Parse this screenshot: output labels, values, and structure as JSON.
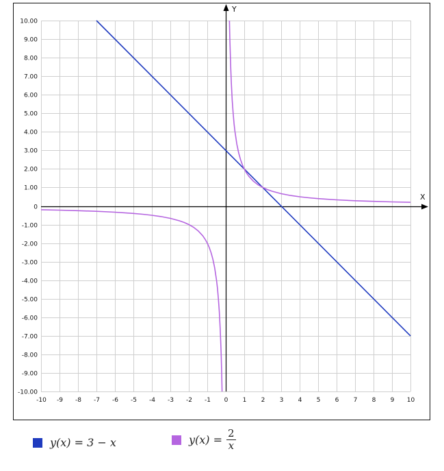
{
  "chart_data": {
    "type": "line",
    "title": "",
    "xlabel": "X",
    "ylabel": "Y",
    "xlim": [
      -10,
      10
    ],
    "ylim": [
      -10,
      10
    ],
    "grid": true,
    "x_ticks": [
      "-10",
      "-9",
      "-8",
      "-7",
      "-6",
      "-5",
      "-4",
      "-3",
      "-2",
      "-1",
      "0",
      "1",
      "2",
      "3",
      "4",
      "5",
      "6",
      "7",
      "8",
      "9",
      "10"
    ],
    "y_ticks": [
      "10.00",
      "9.00",
      "8.00",
      "7.00",
      "6.00",
      "5.00",
      "4.00",
      "3.00",
      "2.00",
      "1.00",
      "0",
      "-1.00",
      "-2.00",
      "-3.00",
      "-4.00",
      "-5.00",
      "-6.00",
      "-7.00",
      "-8.00",
      "-9.00",
      "-10.00"
    ],
    "legend_position": "bottom",
    "series": [
      {
        "name": "y(x) = 3 − x",
        "color": "#1f3bbf",
        "segments": [
          [
            [
              -7,
              10
            ],
            [
              10,
              -7
            ]
          ]
        ]
      },
      {
        "name": "y(x) = 2/x",
        "color": "#b565e0",
        "segments": [
          [
            [
              -10,
              -0.2
            ],
            [
              -9,
              -0.222
            ],
            [
              -8,
              -0.25
            ],
            [
              -7,
              -0.286
            ],
            [
              -6,
              -0.333
            ],
            [
              -5,
              -0.4
            ],
            [
              -4.5,
              -0.444
            ],
            [
              -4,
              -0.5
            ],
            [
              -3.5,
              -0.571
            ],
            [
              -3,
              -0.667
            ],
            [
              -2.5,
              -0.8
            ],
            [
              -2.25,
              -0.889
            ],
            [
              -2,
              -1
            ],
            [
              -1.75,
              -1.143
            ],
            [
              -1.5,
              -1.333
            ],
            [
              -1.25,
              -1.6
            ],
            [
              -1.1,
              -1.818
            ],
            [
              -1,
              -2
            ],
            [
              -0.9,
              -2.222
            ],
            [
              -0.8,
              -2.5
            ],
            [
              -0.7,
              -2.857
            ],
            [
              -0.6,
              -3.333
            ],
            [
              -0.5,
              -4
            ],
            [
              -0.45,
              -4.444
            ],
            [
              -0.4,
              -5
            ],
            [
              -0.35,
              -5.714
            ],
            [
              -0.3,
              -6.667
            ],
            [
              -0.27,
              -7.407
            ],
            [
              -0.25,
              -8
            ],
            [
              -0.22,
              -9.091
            ],
            [
              -0.2,
              -10
            ]
          ],
          [
            [
              0.2,
              10
            ],
            [
              0.22,
              9.091
            ],
            [
              0.25,
              8
            ],
            [
              0.27,
              7.407
            ],
            [
              0.3,
              6.667
            ],
            [
              0.35,
              5.714
            ],
            [
              0.4,
              5
            ],
            [
              0.45,
              4.444
            ],
            [
              0.5,
              4
            ],
            [
              0.6,
              3.333
            ],
            [
              0.7,
              2.857
            ],
            [
              0.8,
              2.5
            ],
            [
              0.9,
              2.222
            ],
            [
              1,
              2
            ],
            [
              1.1,
              1.818
            ],
            [
              1.25,
              1.6
            ],
            [
              1.5,
              1.333
            ],
            [
              1.75,
              1.143
            ],
            [
              2,
              1
            ],
            [
              2.25,
              0.889
            ],
            [
              2.5,
              0.8
            ],
            [
              3,
              0.667
            ],
            [
              3.5,
              0.571
            ],
            [
              4,
              0.5
            ],
            [
              4.5,
              0.444
            ],
            [
              5,
              0.4
            ],
            [
              6,
              0.333
            ],
            [
              7,
              0.286
            ],
            [
              8,
              0.25
            ],
            [
              9,
              0.222
            ],
            [
              10,
              0.2
            ]
          ]
        ]
      }
    ]
  },
  "legend": {
    "item1": {
      "text": "y(x) = 3 − x",
      "color": "#1f3bbf"
    },
    "item2": {
      "prefix": "y(x) =",
      "numerator": "2",
      "denominator": "x",
      "color": "#b565e0"
    }
  }
}
